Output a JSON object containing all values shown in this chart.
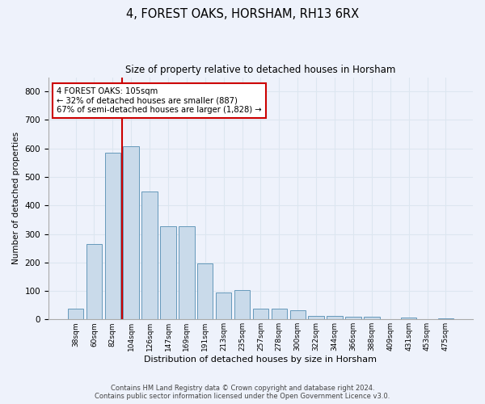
{
  "title": "4, FOREST OAKS, HORSHAM, RH13 6RX",
  "subtitle": "Size of property relative to detached houses in Horsham",
  "xlabel": "Distribution of detached houses by size in Horsham",
  "ylabel": "Number of detached properties",
  "categories": [
    "38sqm",
    "60sqm",
    "82sqm",
    "104sqm",
    "126sqm",
    "147sqm",
    "169sqm",
    "191sqm",
    "213sqm",
    "235sqm",
    "257sqm",
    "278sqm",
    "300sqm",
    "322sqm",
    "344sqm",
    "366sqm",
    "388sqm",
    "409sqm",
    "431sqm",
    "453sqm",
    "475sqm"
  ],
  "values": [
    38,
    265,
    585,
    607,
    450,
    327,
    327,
    196,
    93,
    102,
    38,
    38,
    33,
    12,
    12,
    10,
    10,
    0,
    7,
    0,
    5
  ],
  "bar_color": "#c9daea",
  "bar_edge_color": "#6699bb",
  "grid_color": "#dce6f0",
  "background_color": "#eef2fb",
  "property_line_index": 3,
  "annotation_text": "4 FOREST OAKS: 105sqm\n← 32% of detached houses are smaller (887)\n67% of semi-detached houses are larger (1,828) →",
  "annotation_box_color": "#ffffff",
  "annotation_box_edge_color": "#cc0000",
  "property_line_color": "#cc0000",
  "ylim": [
    0,
    850
  ],
  "yticks": [
    0,
    100,
    200,
    300,
    400,
    500,
    600,
    700,
    800
  ],
  "footer_line1": "Contains HM Land Registry data © Crown copyright and database right 2024.",
  "footer_line2": "Contains public sector information licensed under the Open Government Licence v3.0."
}
